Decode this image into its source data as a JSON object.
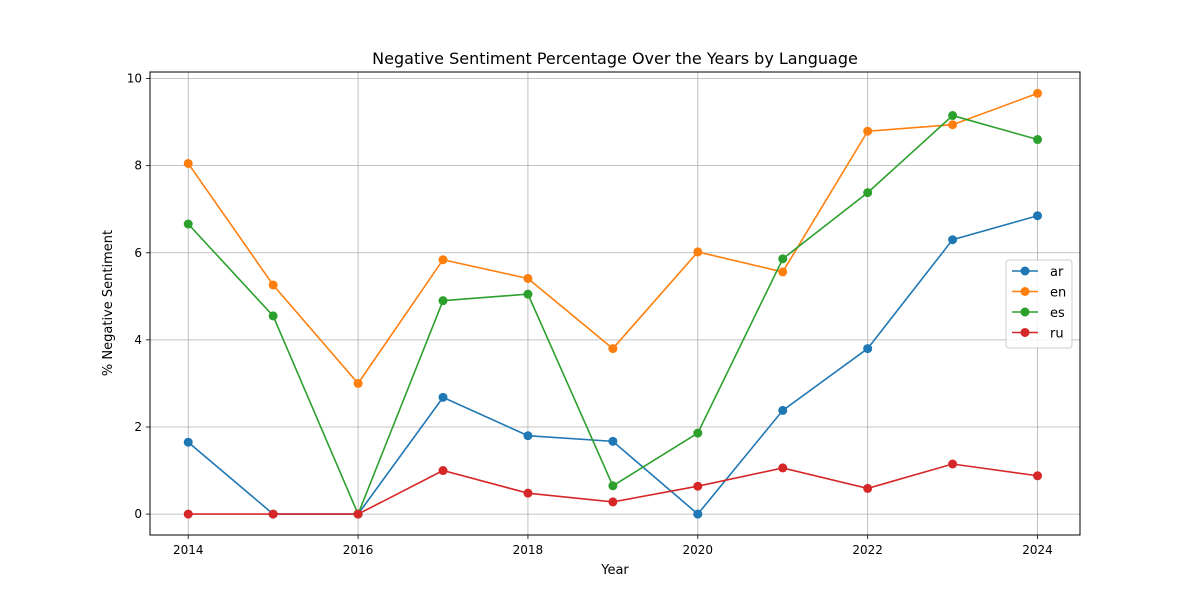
{
  "chart_data": {
    "type": "line",
    "title": "Negative Sentiment Percentage Over the Years by Language",
    "xlabel": "Year",
    "ylabel": "% Negative Sentiment",
    "x": [
      2014,
      2015,
      2016,
      2017,
      2018,
      2019,
      2020,
      2021,
      2022,
      2023,
      2024
    ],
    "xticks": [
      2014,
      2016,
      2018,
      2020,
      2022,
      2024
    ],
    "yticks": [
      0,
      2,
      4,
      6,
      8,
      10
    ],
    "xlim": [
      2013.55,
      2024.5
    ],
    "ylim": [
      -0.48,
      10.15
    ],
    "grid": true,
    "legend_position": "center-right",
    "series": [
      {
        "name": "ar",
        "color": "#1f77b4",
        "values": [
          1.65,
          0.0,
          0.0,
          2.68,
          1.8,
          1.67,
          0.0,
          2.38,
          3.8,
          6.3,
          6.85
        ]
      },
      {
        "name": "en",
        "color": "#ff7f0e",
        "values": [
          8.05,
          5.26,
          3.0,
          5.84,
          5.41,
          3.8,
          6.02,
          5.56,
          8.79,
          8.94,
          9.66
        ]
      },
      {
        "name": "es",
        "color": "#2ca02c",
        "values": [
          6.66,
          4.55,
          0.0,
          4.9,
          5.05,
          0.65,
          1.86,
          5.86,
          7.38,
          9.15,
          8.6
        ]
      },
      {
        "name": "ru",
        "color": "#d62728",
        "values": [
          0.0,
          0.0,
          0.0,
          1.0,
          0.48,
          0.28,
          0.64,
          1.06,
          0.59,
          1.15,
          0.88
        ]
      }
    ]
  }
}
